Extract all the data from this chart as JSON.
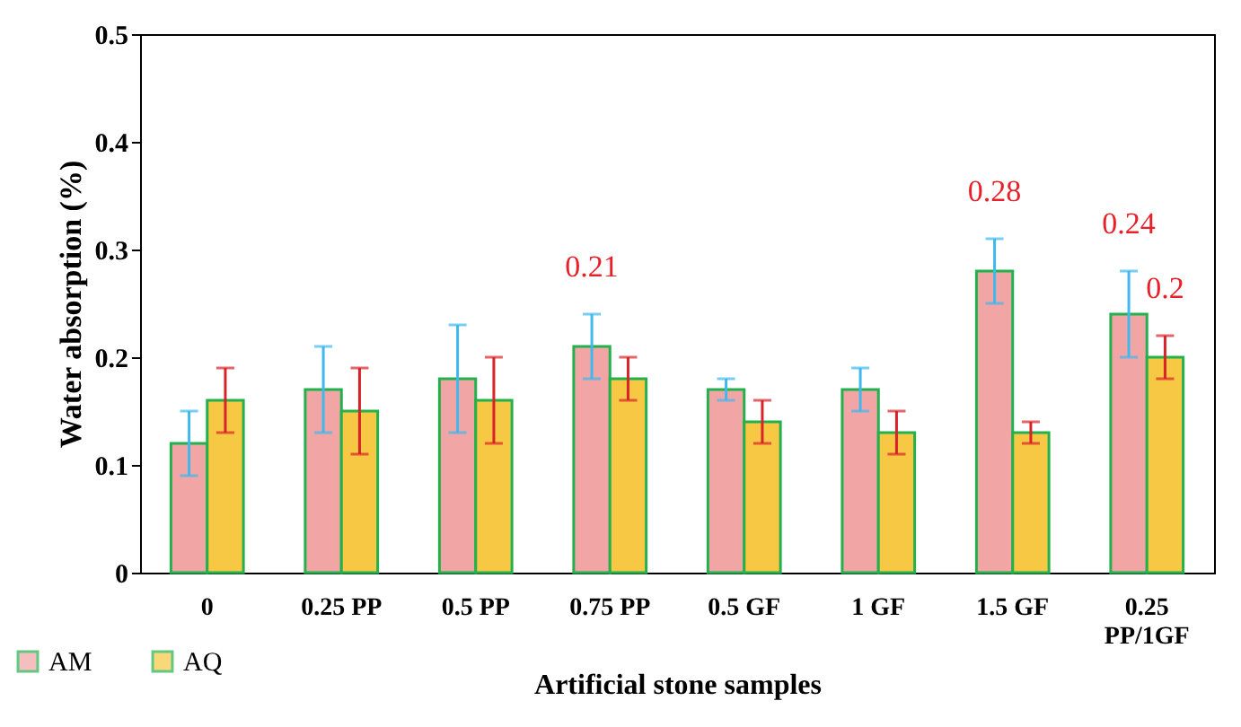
{
  "chart_data": {
    "type": "bar",
    "xlabel": "Artificial stone samples",
    "ylabel": "Water absorption (%)",
    "categories": [
      "0",
      "0.25 PP",
      "0.5 PP",
      "0.75 PP",
      "0.5 GF",
      "1 GF",
      "1.5 GF",
      "0.25 PP/1GF"
    ],
    "series": [
      {
        "name": "AM",
        "color": "#f2a5a5",
        "values": [
          0.12,
          0.17,
          0.18,
          0.21,
          0.17,
          0.17,
          0.28,
          0.24
        ],
        "errors": [
          0.03,
          0.04,
          0.05,
          0.03,
          0.01,
          0.02,
          0.03,
          0.04
        ],
        "value_labels": [
          null,
          null,
          null,
          "0.21",
          null,
          null,
          "0.28",
          "0.24"
        ]
      },
      {
        "name": "AQ",
        "color": "#f7c843",
        "values": [
          0.16,
          0.15,
          0.16,
          0.18,
          0.14,
          0.13,
          0.13,
          0.2
        ],
        "errors": [
          0.03,
          0.04,
          0.04,
          0.02,
          0.02,
          0.02,
          0.01,
          0.02
        ],
        "value_labels": [
          null,
          null,
          null,
          null,
          null,
          null,
          null,
          "0.2"
        ]
      }
    ],
    "ylim": [
      0,
      0.5
    ],
    "yticks": [
      0,
      0.1,
      0.2,
      0.3,
      0.4,
      0.5
    ],
    "grid": false,
    "legend": "bottom left"
  }
}
